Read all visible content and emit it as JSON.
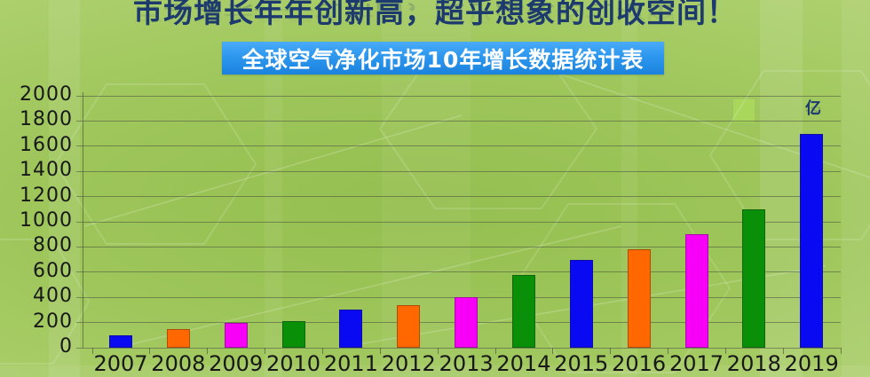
{
  "header": {
    "title": "市场增长年年创新高，超乎想象的创收空间！",
    "banner": "全球空气净化市场10年增长数据统计表"
  },
  "colors": {
    "title_text": "#1c3a6e",
    "banner_bg": "#2d97ee",
    "banner_text": "#ffffff",
    "gridline": "rgba(75,80,62,0.55)",
    "axis_text": "#181818",
    "bar_blue": "#0a0af2",
    "bar_orange": "#ff6700",
    "bar_magenta": "#f800f8",
    "bar_green": "#0a9008"
  },
  "chart_data": {
    "type": "bar",
    "title": "全球空气净化市场10年增长数据统计表",
    "categories": [
      "2007",
      "2008",
      "2009",
      "2010",
      "2011",
      "2012",
      "2013",
      "2014",
      "2015",
      "2016",
      "2017",
      "2018",
      "2019"
    ],
    "values": [
      100,
      150,
      200,
      210,
      300,
      340,
      400,
      580,
      700,
      780,
      900,
      1100,
      1700
    ],
    "bar_colors": [
      "#0a0af2",
      "#ff6700",
      "#f800f8",
      "#0a9008",
      "#0a0af2",
      "#ff6700",
      "#f800f8",
      "#0a9008",
      "#0a0af2",
      "#ff6700",
      "#f800f8",
      "#0a9008",
      "#0a0af2"
    ],
    "unit_label": "亿",
    "xlabel": "",
    "ylabel": "亿",
    "ylim": [
      0,
      2000
    ],
    "yticks": [
      0,
      200,
      400,
      600,
      800,
      1000,
      1200,
      1400,
      1600,
      1800,
      2000
    ],
    "grid": true,
    "legend": false
  }
}
